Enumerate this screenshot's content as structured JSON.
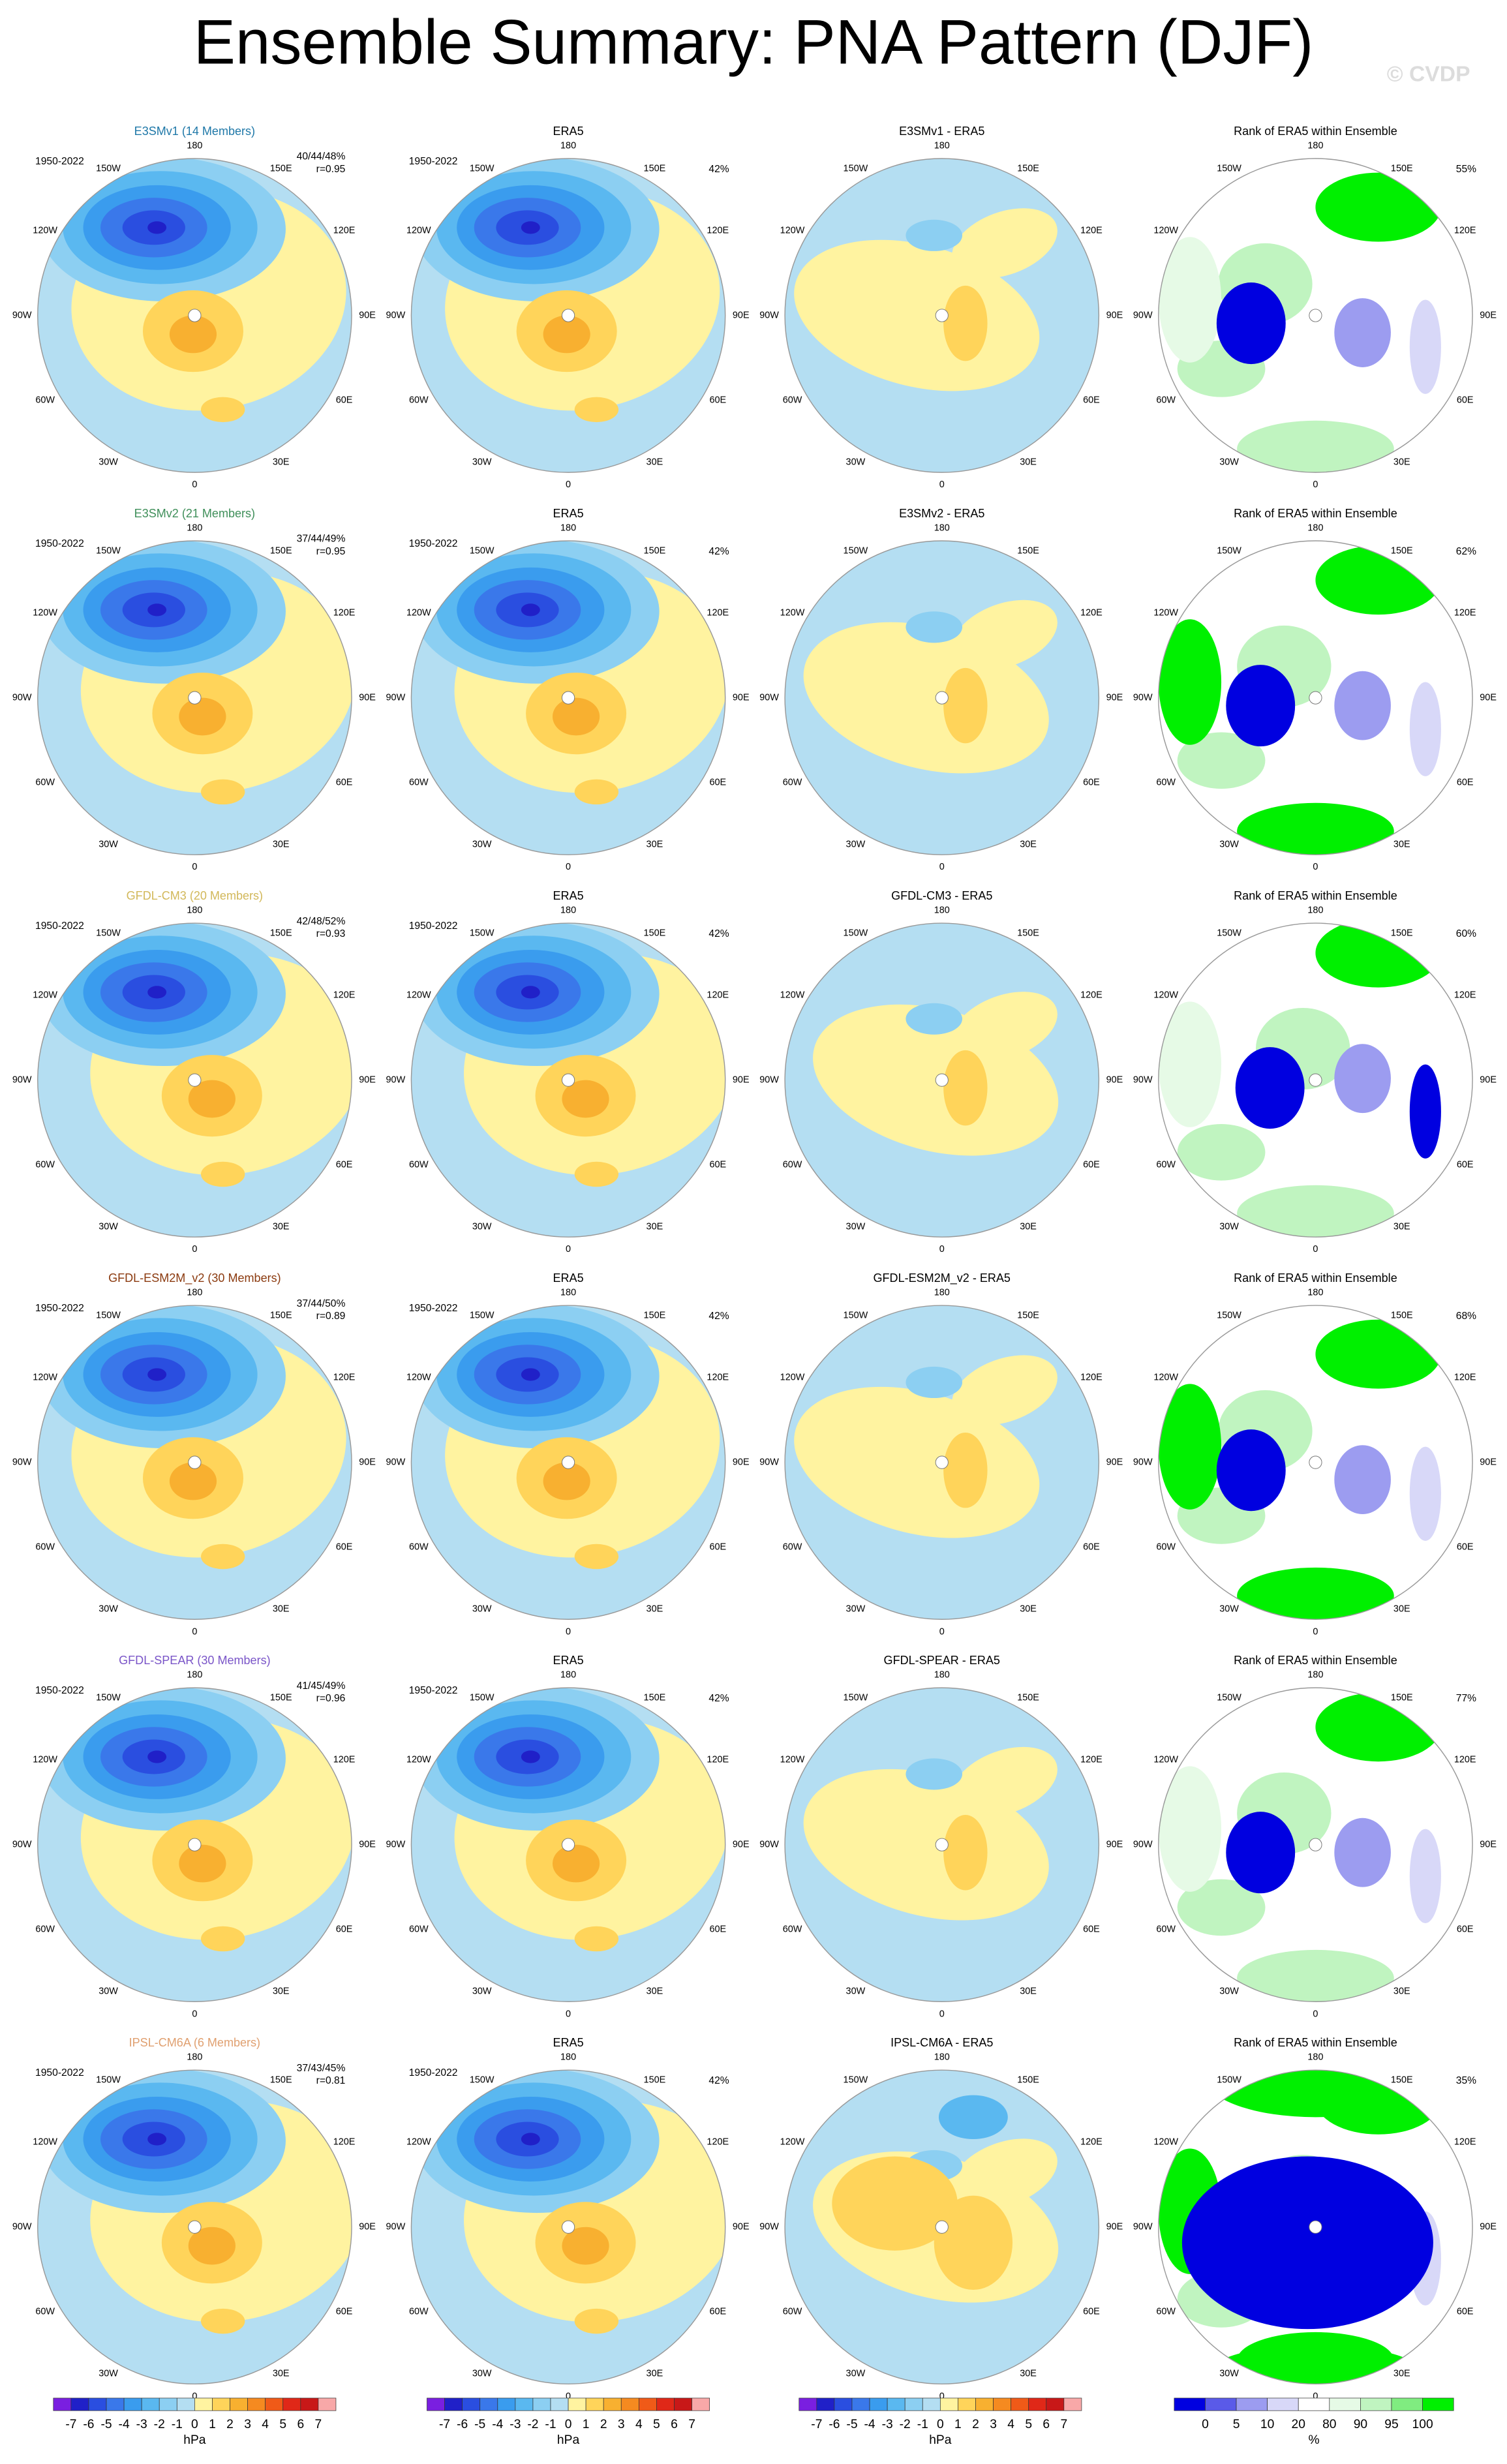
{
  "title": "Ensemble Summary: PNA Pattern (DJF)",
  "watermark": "© CVDP",
  "map_labels": [
    "180",
    "150E",
    "120E",
    "90E",
    "60E",
    "30E",
    "0",
    "30W",
    "60W",
    "90W",
    "120W",
    "150W"
  ],
  "rows": [
    {
      "model_title": "E3SMv1 (14 Members)",
      "model_color": "#1f78a8",
      "period": "1950-2022",
      "pct_stats": "40/44/48%",
      "r": "r=0.95",
      "obs_title": "ERA5",
      "obs_period": "1950-2022",
      "obs_pct": "42%",
      "diff_title": "E3SMv1 - ERA5",
      "rank_title": "Rank of ERA5 within Ensemble",
      "rank_pct": "55%"
    },
    {
      "model_title": "E3SMv2 (21 Members)",
      "model_color": "#3f8f5a",
      "period": "1950-2022",
      "pct_stats": "37/44/49%",
      "r": "r=0.95",
      "obs_title": "ERA5",
      "obs_period": "1950-2022",
      "obs_pct": "42%",
      "diff_title": "E3SMv2 - ERA5",
      "rank_title": "Rank of ERA5 within Ensemble",
      "rank_pct": "62%"
    },
    {
      "model_title": "GFDL-CM3 (20 Members)",
      "model_color": "#d2b85a",
      "period": "1950-2022",
      "pct_stats": "42/48/52%",
      "r": "r=0.93",
      "obs_title": "ERA5",
      "obs_period": "1950-2022",
      "obs_pct": "42%",
      "diff_title": "GFDL-CM3 - ERA5",
      "rank_title": "Rank of ERA5 within Ensemble",
      "rank_pct": "60%"
    },
    {
      "model_title": "GFDL-ESM2M_v2 (30 Members)",
      "model_color": "#8b3a0f",
      "period": "1950-2022",
      "pct_stats": "37/44/50%",
      "r": "r=0.89",
      "obs_title": "ERA5",
      "obs_period": "1950-2022",
      "obs_pct": "42%",
      "diff_title": "GFDL-ESM2M_v2 - ERA5",
      "rank_title": "Rank of ERA5 within Ensemble",
      "rank_pct": "68%"
    },
    {
      "model_title": "GFDL-SPEAR (30 Members)",
      "model_color": "#7a55c8",
      "period": "1950-2022",
      "pct_stats": "41/45/49%",
      "r": "r=0.96",
      "obs_title": "ERA5",
      "obs_period": "1950-2022",
      "obs_pct": "42%",
      "diff_title": "GFDL-SPEAR - ERA5",
      "rank_title": "Rank of ERA5 within Ensemble",
      "rank_pct": "77%"
    },
    {
      "model_title": "IPSL-CM6A (6 Members)",
      "model_color": "#e0a070",
      "period": "1950-2022",
      "pct_stats": "37/43/45%",
      "r": "r=0.81",
      "obs_title": "ERA5",
      "obs_period": "1950-2022",
      "obs_pct": "42%",
      "diff_title": "IPSL-CM6A - ERA5",
      "rank_title": "Rank of ERA5 within Ensemble",
      "rank_pct": "35%"
    }
  ],
  "slp_colorbar": {
    "ticks": [
      -7,
      -6,
      -5,
      -4,
      -3,
      -2,
      -1,
      0,
      1,
      2,
      3,
      4,
      5,
      6,
      7
    ],
    "unit": "hPa",
    "colors": [
      "#7a1fe0",
      "#2020c8",
      "#2a4ee0",
      "#3a78ea",
      "#3a9cee",
      "#5ab8f0",
      "#8ccff2",
      "#b4def2",
      "#fff3a0",
      "#ffd45a",
      "#f8b030",
      "#f58a20",
      "#f05a18",
      "#e02818",
      "#c81818",
      "#f8a8a8"
    ]
  },
  "rank_colorbar": {
    "ticks": [
      0,
      5,
      10,
      20,
      80,
      90,
      95,
      100
    ],
    "unit": "%",
    "colors": [
      "#0000e0",
      "#5a5ae8",
      "#9c9cf0",
      "#d8d8f8",
      "#ffffff",
      "#e6fae6",
      "#c0f4c0",
      "#80ec80",
      "#00f000"
    ]
  }
}
